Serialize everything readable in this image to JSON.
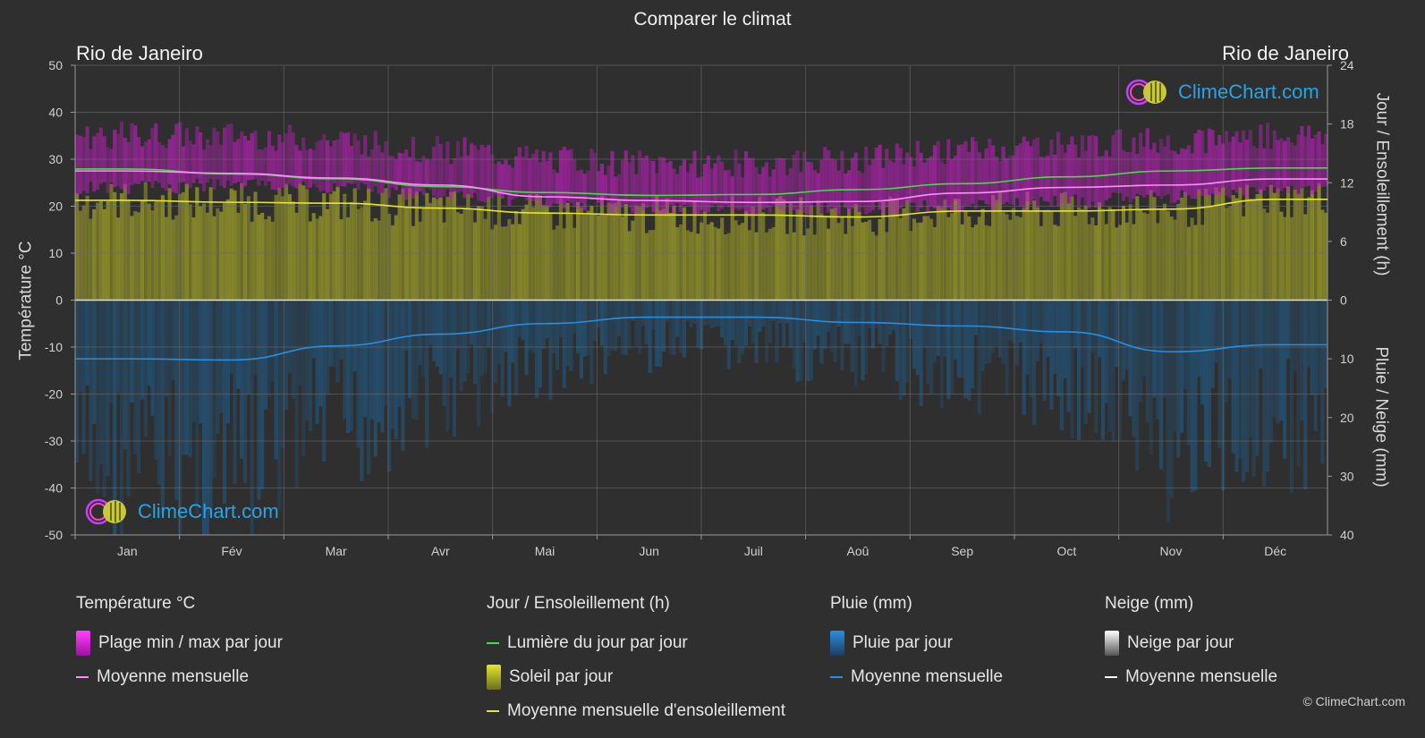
{
  "title": "Comparer le climat",
  "location_left": "Rio de Janeiro",
  "location_right": "Rio de Janeiro",
  "copyright": "© ClimeChart.com",
  "logo_text": "ClimeChart.com",
  "axis_titles": {
    "left": "Température °C",
    "right_top": "Jour / Ensoleillement (h)",
    "right_bottom": "Pluie / Neige (mm)"
  },
  "legend": {
    "temperature": {
      "title": "Température °C",
      "items": [
        "Plage min / max par jour",
        "Moyenne mensuelle"
      ]
    },
    "sun": {
      "title": "Jour / Ensoleillement (h)",
      "items": [
        "Lumière du jour par jour",
        "Soleil par jour",
        "Moyenne mensuelle d'ensoleillement"
      ]
    },
    "rain": {
      "title": "Pluie (mm)",
      "items": [
        "Pluie par jour",
        "Moyenne mensuelle"
      ]
    },
    "snow": {
      "title": "Neige (mm)",
      "items": [
        "Neige par jour",
        "Moyenne mensuelle"
      ]
    }
  },
  "colors": {
    "background": "#2f2f2f",
    "temp_range": "#c21fc2",
    "temp_mean": "#ff8cff",
    "daylight": "#44dd44",
    "sunshine_fill": "#9a9a2a",
    "sunshine_mean": "#e6e62a",
    "rain_fill": "#1f5f8f",
    "rain_mean": "#2a8ee0",
    "snow_mean": "#ffffff"
  },
  "chart_data": {
    "type": "area",
    "categories": [
      "Jan",
      "Fév",
      "Mar",
      "Avr",
      "Mai",
      "Jun",
      "Juil",
      "Aoû",
      "Sep",
      "Oct",
      "Nov",
      "Déc"
    ],
    "y_left": {
      "label": "Température °C",
      "ylim": [
        -50,
        50
      ],
      "ticks": [
        50,
        40,
        30,
        20,
        10,
        0,
        -10,
        -20,
        -30,
        -40,
        -50
      ]
    },
    "y_right_top": {
      "label": "Jour / Ensoleillement (h)",
      "ylim": [
        0,
        24
      ],
      "ticks": [
        24,
        18,
        12,
        6,
        0
      ]
    },
    "y_right_bottom": {
      "label": "Pluie / Neige (mm)",
      "ylim": [
        0,
        40
      ],
      "ticks": [
        0,
        10,
        20,
        30,
        40
      ]
    },
    "grid": true,
    "series": [
      {
        "name": "Plage min / max par jour",
        "type": "range",
        "min": [
          24,
          24.5,
          24,
          22.5,
          21,
          19.5,
          19,
          19.5,
          20,
          21,
          22,
          23.5
        ],
        "max": [
          35,
          35,
          34,
          32,
          30,
          29,
          29,
          30,
          32,
          33,
          34,
          35
        ]
      },
      {
        "name": "Moyenne mensuelle",
        "type": "line",
        "axis": "temperature",
        "values": [
          27.5,
          27,
          26,
          24.5,
          22,
          21.2,
          20.8,
          21,
          22.8,
          24,
          24.5,
          25.8
        ]
      },
      {
        "name": "Lumière du jour par jour",
        "type": "line",
        "axis": "hours",
        "values": [
          13.4,
          12.9,
          12.4,
          11.6,
          11.0,
          10.7,
          10.8,
          11.3,
          11.9,
          12.6,
          13.2,
          13.5
        ]
      },
      {
        "name": "Moyenne mensuelle d'ensoleillement",
        "type": "line",
        "axis": "hours",
        "values": [
          10.2,
          10.0,
          9.9,
          9.4,
          8.9,
          8.7,
          8.7,
          8.5,
          9.1,
          9.1,
          9.3,
          10.3
        ]
      },
      {
        "name": "Moyenne mensuelle",
        "type": "line",
        "axis": "precipitation",
        "values": [
          10.0,
          10.2,
          7.8,
          5.8,
          4.0,
          2.9,
          2.9,
          3.8,
          4.4,
          5.4,
          8.8,
          7.6
        ]
      }
    ]
  }
}
